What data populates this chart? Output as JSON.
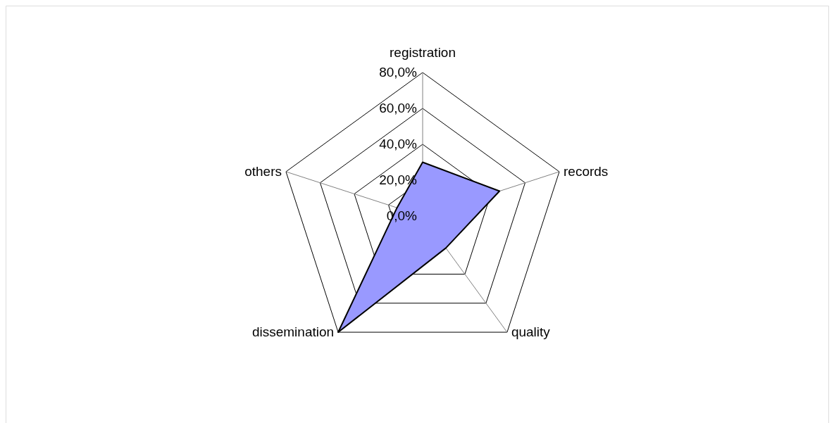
{
  "chart_data": {
    "type": "radar",
    "categories": [
      "registration",
      "records",
      "quality",
      "dissemination",
      "others"
    ],
    "series": [
      {
        "color": "#9999ff",
        "values": [
          30,
          45,
          22,
          80,
          15
        ]
      }
    ],
    "ylim": [
      0,
      80
    ],
    "yticks": [
      {
        "value": 0,
        "label": "0,0%"
      },
      {
        "value": 20,
        "label": "20,0%"
      },
      {
        "value": 40,
        "label": "40,0%"
      },
      {
        "value": 60,
        "label": "60,0%"
      },
      {
        "value": 80,
        "label": "80,0%"
      }
    ]
  }
}
